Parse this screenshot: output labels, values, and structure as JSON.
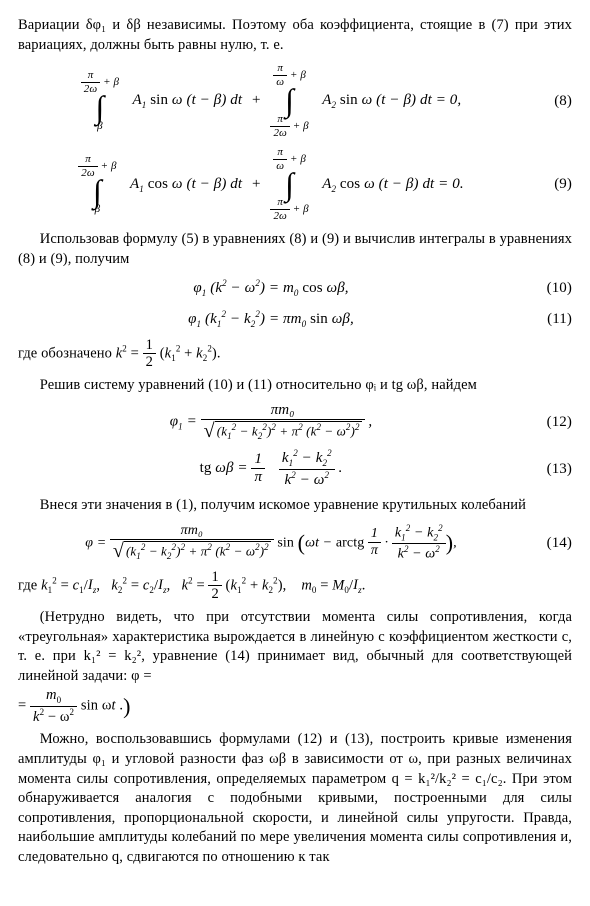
{
  "para1": "Вариации δφ₁ и δβ независимы. Поэтому оба коэффициента, стоящие в (7) при этих вариациях, должны быть равны нулю, т. е.",
  "eq8": {
    "int1_ub": "π/2ω + β",
    "int1_lb": "β",
    "term1": "A₁ sin ω (t − β) dt",
    "plus": "+",
    "int2_ub": "π/ω + β",
    "int2_lb": "π/2ω + β",
    "term2": "A₂ sin ω (t − β) dt = 0,",
    "num": "(8)"
  },
  "eq9": {
    "int1_ub": "π/2ω + β",
    "int1_lb": "β",
    "term1": "A₁ cos ω (t − β) dt",
    "plus": "+",
    "int2_ub": "π/ω + β",
    "int2_lb": "π/2ω + β",
    "term2": "A₂ cos ω (t − β) dt = 0.",
    "num": "(9)"
  },
  "para2": "Использовав формулу (5) в уравнениях (8) и (9) и вычислив интегралы в уравнениях (8) и (9), получим",
  "eq10": {
    "body": "φ₁ (k² − ω²) = m₀ cos ωβ,",
    "num": "(10)"
  },
  "eq11": {
    "body": "φ₁ (k₁² − k₂²) = πm₀ sin ωβ,",
    "num": "(11)"
  },
  "para3a": "где обозначено  ",
  "para3b_lhs": "k² = ",
  "para3b_fn": "1",
  "para3b_fd": "2",
  "para3b_rhs": " (k₁² + k₂²).",
  "para4": "Решив систему уравнений (10) и (11) относительно φᵢ и tg ωβ, найдем",
  "eq12": {
    "lhs": "φ₁ = ",
    "fn": "πm₀",
    "fd_sqrt": "(k₁² − k₂²)² + π² (k² − ω²)²",
    "tail": ",",
    "num": "(12)"
  },
  "eq13": {
    "lhs": "tg ωβ = ",
    "f1n": "1",
    "f1d": "π",
    "f2n": "k₁² − k₂²",
    "f2d": "k² − ω²",
    "tail": ".",
    "num": "(13)"
  },
  "para5": "Внеся эти значения в (1), получим искомое уравнение крутильных колебаний",
  "eq14": {
    "lhs": "φ = ",
    "fn": "πm₀",
    "fd_sqrt": "(k₁² − k₂²)² + π² (k² − ω²)²",
    "mid": " sin ",
    "arg_pre": "ωt − arctg ",
    "af1n": "1",
    "af1d": "π",
    "dot": " · ",
    "af2n": "k₁² − k₂²",
    "af2d": "k² − ω²",
    "tail": ",",
    "num": "(14)"
  },
  "para6a": "где  k₁² = c₁/Iz,   k₂² = c₂/Iz,   k² = ",
  "para6b_fn": "1",
  "para6b_fd": "2",
  "para6c": " (k₁² + k₂²),    m₀ = M₀/Iz.",
  "para7a": "(Нетрудно видеть, что при отсутствии момента силы сопротивления, когда «треугольная» характеристика вырождается в линейную с коэффициентом жесткости c, т. е. при k₁² = k₂², уравнение (14) принимает вид, обычный для соответствующей линейной задачи: φ =",
  "para7b_lhs": "= ",
  "para7b_fn": "m₀",
  "para7b_fd": "k² − ω²",
  "para7b_rhs": " sin ωt .",
  "para8": "Можно, воспользовавшись формулами (12) и (13), построить кривые изменения амплитуды φ₁ и угловой разности фаз ωβ в зависимости от ω, при разных величинах момента силы сопротивления, определяемых параметром q = k₁²/k₂² = c₁/c₂. При этом обнаруживается аналогия с подобными кривыми, построенными для силы сопротивления, пропорциональной скорости, и линейной силы упругости. Правда, наибольшие амплитуды колебаний по мере увеличения момента силы сопротивления и, следовательно q, сдвигаются по отношению к так"
}
